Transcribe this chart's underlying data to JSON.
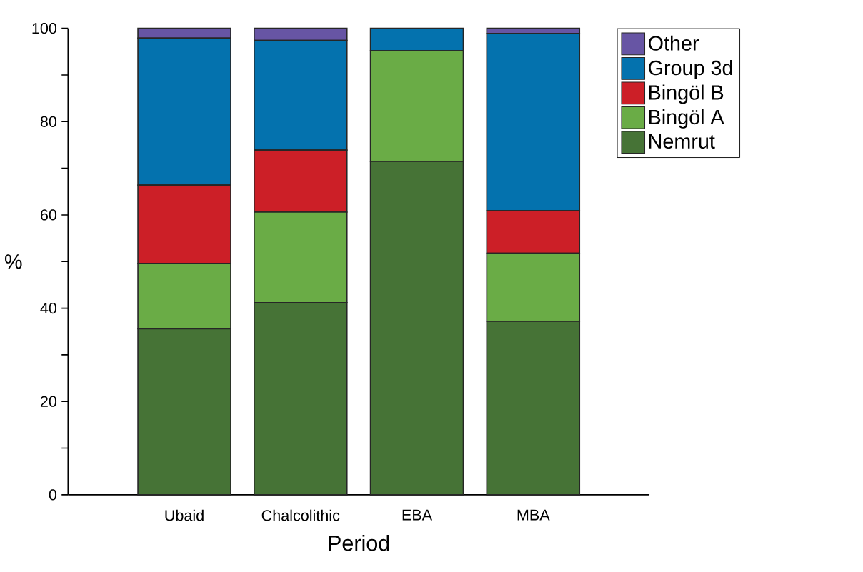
{
  "chart_data": {
    "type": "bar",
    "stacked": true,
    "xlabel": "Period",
    "ylabel": "%",
    "categories": [
      "Ubaid",
      "Chalcolithic",
      "EBA",
      "MBA"
    ],
    "series": [
      {
        "name": "Nemrut",
        "color": "#467336",
        "values": [
          35.6,
          41.2,
          71.5,
          37.2
        ]
      },
      {
        "name": "Bingöl A",
        "color": "#6aac46",
        "values": [
          14.0,
          19.4,
          23.7,
          14.6
        ]
      },
      {
        "name": "Bingöl B",
        "color": "#cc1f27",
        "values": [
          16.8,
          13.3,
          0,
          9.1
        ]
      },
      {
        "name": "Group 3d",
        "color": "#0472ae",
        "values": [
          31.5,
          23.5,
          4.8,
          38.0
        ]
      },
      {
        "name": "Other",
        "color": "#6755a4",
        "values": [
          2.1,
          2.6,
          0,
          1.1
        ]
      }
    ],
    "ylim": [
      0,
      100
    ],
    "yticks": [
      0,
      {
        "value": 10,
        "label": null
      },
      20,
      {
        "value": 30,
        "label": null
      },
      40,
      {
        "value": 50,
        "label": null
      },
      60,
      {
        "value": 70,
        "label": null
      },
      80,
      {
        "value": 90,
        "label": null
      },
      100
    ],
    "legend": "top right",
    "grid": false
  }
}
